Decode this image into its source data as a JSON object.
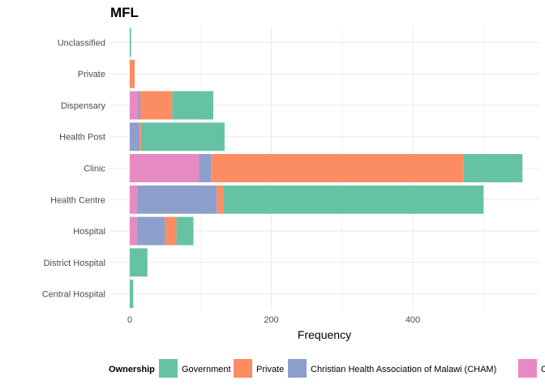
{
  "chart_data": {
    "type": "bar",
    "orientation": "horizontal",
    "stacked": true,
    "title": "MFL",
    "xlabel": "Frequency",
    "ylabel": "",
    "xlim": [
      0,
      580
    ],
    "xticks": [
      0,
      200,
      400
    ],
    "grid": true,
    "legend_position": "bottom",
    "legend_title": "Ownership",
    "categories": [
      "Unclassified",
      "Private",
      "Dispensary",
      "Health Post",
      "Clinic",
      "Health Centre",
      "Hospital",
      "District Hospital",
      "Central Hospital"
    ],
    "series": [
      {
        "name": "Other",
        "color": "#E78AC3",
        "values": [
          0,
          0,
          12,
          0,
          98,
          10,
          10,
          0,
          0
        ]
      },
      {
        "name": "Christian Health Association of Malawi (CHAM)",
        "color": "#8DA0CB",
        "values": [
          0,
          0,
          3,
          14,
          17,
          113,
          40,
          0,
          0
        ]
      },
      {
        "name": "Private",
        "color": "#FC8D62",
        "values": [
          0,
          7,
          45,
          2,
          357,
          9,
          16,
          0,
          0
        ]
      },
      {
        "name": "Government",
        "color": "#66C2A5",
        "values": [
          2,
          0,
          58,
          118,
          83,
          368,
          24,
          25,
          5
        ]
      }
    ],
    "legend_order": [
      "Government",
      "Private",
      "Christian Health Association of Malawi (CHAM)",
      "Other"
    ]
  }
}
